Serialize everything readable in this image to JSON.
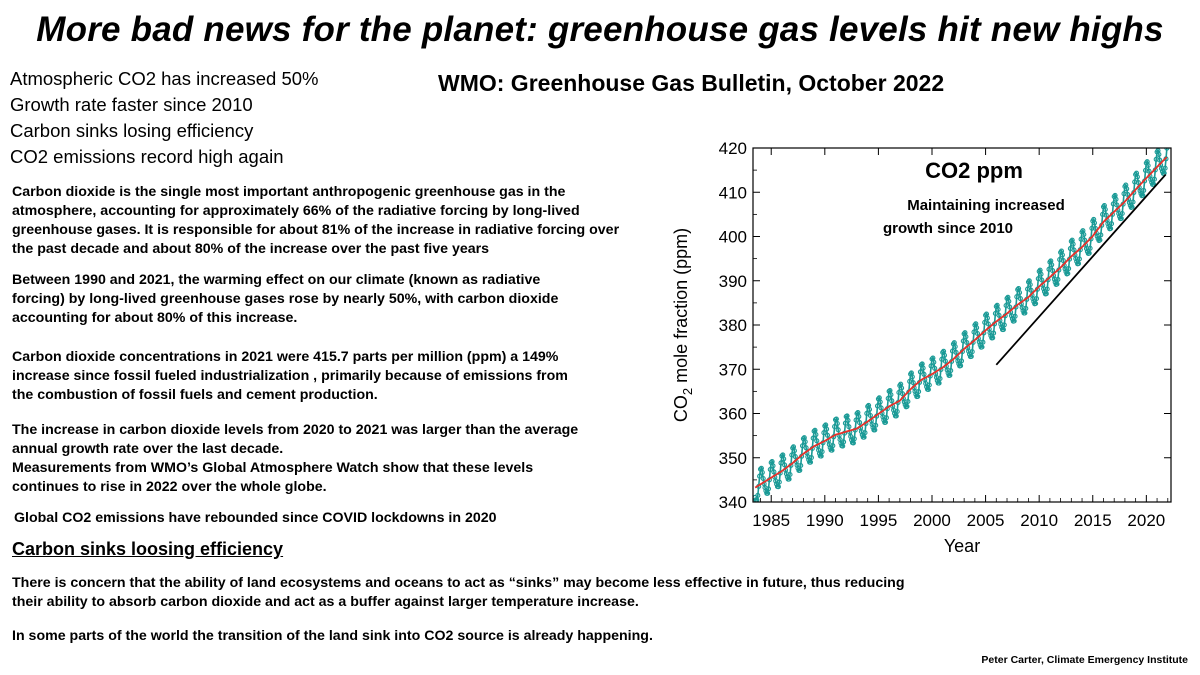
{
  "title": "More bad news for the planet: greenhouse gas levels hit new highs",
  "subtitle": "WMO: Greenhouse Gas Bulletin, October 2022",
  "bullets": [
    "Atmospheric CO2 has increased 50%",
    "Growth rate faster since 2010",
    "Carbon sinks losing efficiency",
    "CO2 emissions record high again"
  ],
  "paragraphs": {
    "p1": [
      "Carbon dioxide is the single most important anthropogenic greenhouse gas in the",
      "atmosphere, accounting for approximately 66% of the radiative forcing by long-lived",
      "greenhouse gases. It is responsible for about 81%  of the increase in radiative forcing over",
      "the past decade and about 80% of the increase over the past five years"
    ],
    "p2": [
      "Between 1990 and 2021, the warming effect on our climate (known as radiative",
      "forcing) by long-lived greenhouse gases rose by nearly 50%, with carbon dioxide",
      "accounting for about 80% of this increase."
    ],
    "p3": [
      "Carbon dioxide concentrations in 2021 were 415.7 parts per million (ppm)  a 149%",
      "increase since fossil fueled industrialization , primarily because  of emissions from",
      "the combustion of fossil fuels and cement production."
    ],
    "p4": [
      "The increase in carbon dioxide levels from 2020 to 2021 was larger than the average",
      "annual growth rate over the last decade.",
      "Measurements from WMO’s Global Atmosphere Watch show that these levels",
      "continues to rise in 2022 over the whole globe."
    ],
    "p5": [
      "Global CO2 emissions have rebounded since COVID  lockdowns  in 2020"
    ],
    "p6": [
      "There is concern that the ability of land ecosystems and oceans to act as “sinks” may become less effective in future, thus reducing",
      "their ability to absorb carbon dioxide and act as a buffer against larger temperature increase."
    ],
    "p7": [
      "In some parts of the world the transition of the land sink into CO2 source is already happening."
    ]
  },
  "section_heading": "Carbon sinks loosing efficiency",
  "signature": "Peter Carter,  Climate Emergency Institute",
  "chart_data": {
    "type": "line",
    "title": "CO2 ppm",
    "annotation": [
      "Maintaining  increased",
      "growth  since 2010"
    ],
    "xlabel": "Year",
    "ylabel_main": "CO",
    "ylabel_sub": "2",
    "ylabel_rest": " mole fraction (ppm)",
    "xlim": [
      1983.3,
      2022.3
    ],
    "ylim": [
      340,
      420
    ],
    "xticks": [
      1985,
      1990,
      1995,
      2000,
      2005,
      2010,
      2015,
      2020
    ],
    "yticks": [
      340,
      350,
      360,
      370,
      380,
      390,
      400,
      410,
      420
    ],
    "grid": false,
    "colors": {
      "trend": "#e8302a",
      "monthly": "#1a9a96",
      "reference": "#000000"
    },
    "trend": {
      "x": [
        1984,
        1985,
        1986,
        1987,
        1988,
        1989,
        1990,
        1991,
        1992,
        1993,
        1994,
        1995,
        1996,
        1997,
        1998,
        1999,
        2000,
        2001,
        2002,
        2003,
        2004,
        2005,
        2006,
        2007,
        2008,
        2009,
        2010,
        2011,
        2012,
        2013,
        2014,
        2015,
        2016,
        2017,
        2018,
        2019,
        2020,
        2021
      ],
      "y": [
        344.0,
        345.5,
        347.0,
        348.8,
        350.9,
        352.6,
        353.8,
        355.2,
        355.9,
        356.6,
        358.2,
        359.9,
        361.6,
        362.9,
        365.5,
        367.6,
        368.9,
        370.4,
        372.3,
        374.6,
        376.6,
        378.8,
        380.8,
        382.6,
        384.6,
        386.3,
        388.7,
        390.8,
        393.0,
        395.5,
        397.6,
        400.1,
        403.3,
        405.6,
        407.9,
        410.6,
        413.2,
        415.7
      ]
    },
    "seasonal_amplitude": 3.2,
    "reference_line": {
      "x": [
        2006,
        2021.8
      ],
      "y": [
        371,
        414
      ]
    }
  }
}
